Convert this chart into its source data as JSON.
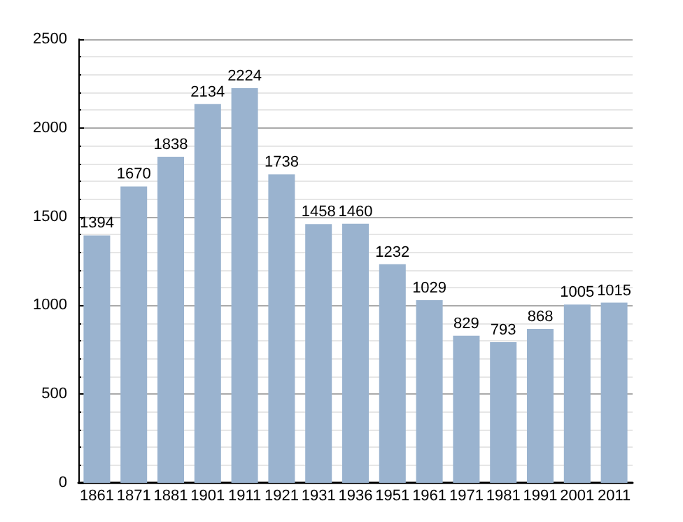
{
  "chart_data": {
    "type": "bar",
    "categories": [
      "1861",
      "1871",
      "1881",
      "1901",
      "1911",
      "1921",
      "1931",
      "1936",
      "1951",
      "1961",
      "1971",
      "1981",
      "1991",
      "2001",
      "2011"
    ],
    "values": [
      1394,
      1670,
      1838,
      2134,
      2224,
      1738,
      1458,
      1460,
      1232,
      1029,
      829,
      793,
      868,
      1005,
      1015
    ],
    "color": "#9ab3cf",
    "ylim": [
      0,
      2500
    ],
    "yticks": [
      0,
      500,
      1000,
      1500,
      2000,
      2500
    ],
    "grid": "y",
    "data_labels": true
  }
}
